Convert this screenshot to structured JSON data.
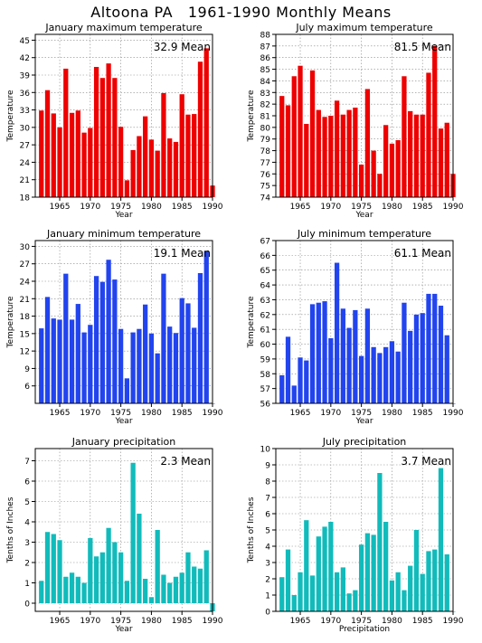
{
  "title": "Altoona PA   1961-1990 Monthly Means",
  "colors": {
    "red": "#ee0000",
    "blue": "#2244ee",
    "cyan": "#11bbbb"
  },
  "chart_data": [
    {
      "type": "bar",
      "title": "January maximum temperature",
      "ylabel": "Temperature",
      "xlabel": "Year",
      "mean_label": "32.9 Mean",
      "color": "#ee0000",
      "x": [
        1962,
        1963,
        1964,
        1965,
        1966,
        1967,
        1968,
        1969,
        1970,
        1971,
        1972,
        1973,
        1974,
        1975,
        1976,
        1977,
        1978,
        1979,
        1980,
        1981,
        1982,
        1983,
        1984,
        1985,
        1986,
        1987,
        1988,
        1989,
        1990
      ],
      "values": [
        32.9,
        36.4,
        32.4,
        30.0,
        40.1,
        32.5,
        32.9,
        29.1,
        29.9,
        40.4,
        38.5,
        41.0,
        38.5,
        30.1,
        20.9,
        26.1,
        28.5,
        31.9,
        27.9,
        26.0,
        35.9,
        28.1,
        27.5,
        35.7,
        32.2,
        32.3,
        41.3,
        43.6,
        20.0
      ],
      "ylim": [
        18,
        46
      ],
      "yticks": [
        18,
        21,
        24,
        27,
        30,
        33,
        36,
        39,
        42,
        45
      ],
      "xlim": [
        1961,
        1990
      ],
      "xticks": [
        1965,
        1970,
        1975,
        1980,
        1985,
        1990
      ]
    },
    {
      "type": "bar",
      "title": "July maximum temperature",
      "ylabel": "Temperature",
      "xlabel": "Year",
      "mean_label": "81.5 Mean",
      "color": "#ee0000",
      "x": [
        1962,
        1963,
        1964,
        1965,
        1966,
        1967,
        1968,
        1969,
        1970,
        1971,
        1972,
        1973,
        1974,
        1975,
        1976,
        1977,
        1978,
        1979,
        1980,
        1981,
        1982,
        1983,
        1984,
        1985,
        1986,
        1987,
        1988,
        1989,
        1990
      ],
      "values": [
        82.7,
        81.9,
        84.4,
        85.3,
        80.3,
        84.9,
        81.5,
        80.9,
        81.0,
        82.3,
        81.1,
        81.5,
        81.7,
        76.8,
        83.3,
        78.0,
        76.0,
        80.2,
        78.6,
        78.9,
        84.4,
        81.4,
        81.1,
        81.1,
        84.7,
        87.0,
        79.9,
        80.4,
        76.0
      ],
      "ylim": [
        74,
        88
      ],
      "yticks": [
        74,
        75,
        76,
        77,
        78,
        79,
        80,
        81,
        82,
        83,
        84,
        85,
        86,
        87,
        88
      ],
      "xlim": [
        1961,
        1990
      ],
      "xticks": [
        1965,
        1970,
        1975,
        1980,
        1985,
        1990
      ]
    },
    {
      "type": "bar",
      "title": "January minimum temperature",
      "ylabel": "Temperature",
      "xlabel": "Year",
      "mean_label": "19.1 Mean",
      "color": "#2244ee",
      "x": [
        1962,
        1963,
        1964,
        1965,
        1966,
        1967,
        1968,
        1969,
        1970,
        1971,
        1972,
        1973,
        1974,
        1975,
        1976,
        1977,
        1978,
        1979,
        1980,
        1981,
        1982,
        1983,
        1984,
        1985,
        1986,
        1987,
        1988,
        1989,
        1990
      ],
      "values": [
        15.9,
        21.3,
        17.6,
        17.4,
        25.3,
        17.4,
        20.1,
        15.2,
        16.5,
        24.9,
        23.9,
        27.7,
        24.3,
        15.8,
        7.3,
        15.2,
        15.8,
        20.0,
        15.0,
        11.6,
        25.3,
        16.2,
        15.1,
        21.1,
        20.2,
        16.0,
        25.4,
        29.2,
        3.0
      ],
      "ylim": [
        3,
        31
      ],
      "yticks": [
        6,
        9,
        12,
        15,
        18,
        21,
        24,
        27,
        30
      ],
      "xlim": [
        1961,
        1990
      ],
      "xticks": [
        1965,
        1970,
        1975,
        1980,
        1985,
        1990
      ]
    },
    {
      "type": "bar",
      "title": "July minimum temperature",
      "ylabel": "Temperature",
      "xlabel": "Year",
      "mean_label": "61.1 Mean",
      "color": "#2244ee",
      "x": [
        1962,
        1963,
        1964,
        1965,
        1966,
        1967,
        1968,
        1969,
        1970,
        1971,
        1972,
        1973,
        1974,
        1975,
        1976,
        1977,
        1978,
        1979,
        1980,
        1981,
        1982,
        1983,
        1984,
        1985,
        1986,
        1987,
        1988,
        1989,
        1990
      ],
      "values": [
        57.9,
        60.5,
        57.2,
        59.1,
        58.9,
        62.7,
        62.8,
        62.9,
        60.4,
        65.5,
        62.4,
        61.1,
        62.3,
        59.2,
        62.4,
        59.8,
        59.4,
        59.8,
        60.2,
        59.5,
        62.8,
        60.9,
        62.0,
        62.1,
        63.4,
        63.4,
        62.6,
        60.6,
        56.0
      ],
      "ylim": [
        56,
        67
      ],
      "yticks": [
        56,
        57,
        58,
        59,
        60,
        61,
        62,
        63,
        64,
        65,
        66,
        67
      ],
      "xlim": [
        1961,
        1990
      ],
      "xticks": [
        1965,
        1970,
        1975,
        1980,
        1985,
        1990
      ]
    },
    {
      "type": "bar",
      "title": "January precipitation",
      "ylabel": "Tenths of Inches",
      "xlabel": "Year",
      "mean_label": "2.3 Mean",
      "color": "#11bbbb",
      "x": [
        1962,
        1963,
        1964,
        1965,
        1966,
        1967,
        1968,
        1969,
        1970,
        1971,
        1972,
        1973,
        1974,
        1975,
        1976,
        1977,
        1978,
        1979,
        1980,
        1981,
        1982,
        1983,
        1984,
        1985,
        1986,
        1987,
        1988,
        1989,
        1990
      ],
      "values": [
        1.1,
        3.5,
        3.4,
        3.1,
        1.3,
        1.5,
        1.3,
        1.0,
        3.2,
        2.3,
        2.5,
        3.7,
        3.0,
        2.5,
        1.1,
        6.9,
        4.4,
        1.2,
        0.3,
        3.6,
        1.4,
        1.0,
        1.3,
        1.5,
        2.5,
        1.8,
        1.7,
        2.6,
        -0.4
      ],
      "ylim": [
        -0.4,
        7.6
      ],
      "yticks": [
        0,
        1,
        2,
        3,
        4,
        5,
        6,
        7
      ],
      "xlim": [
        1961,
        1990
      ],
      "xticks": [
        1965,
        1970,
        1975,
        1980,
        1985,
        1990
      ]
    },
    {
      "type": "bar",
      "title": "July precipitation",
      "ylabel": "Tenths of Inches",
      "xlabel": "Precipitation",
      "mean_label": "3.7 Mean",
      "color": "#11bbbb",
      "x": [
        1962,
        1963,
        1964,
        1965,
        1966,
        1967,
        1968,
        1969,
        1970,
        1971,
        1972,
        1973,
        1974,
        1975,
        1976,
        1977,
        1978,
        1979,
        1980,
        1981,
        1982,
        1983,
        1984,
        1985,
        1986,
        1987,
        1988,
        1989,
        1990
      ],
      "values": [
        2.1,
        3.8,
        1.0,
        2.4,
        5.6,
        2.2,
        4.6,
        5.2,
        5.5,
        2.4,
        2.7,
        1.1,
        1.3,
        4.1,
        4.8,
        4.7,
        8.5,
        5.5,
        1.9,
        2.4,
        1.3,
        2.8,
        5.0,
        2.3,
        3.7,
        3.8,
        8.8,
        3.5,
        0.0
      ],
      "ylim": [
        0,
        10
      ],
      "yticks": [
        0,
        1,
        2,
        3,
        4,
        5,
        6,
        7,
        8,
        9,
        10
      ],
      "xlim": [
        1961,
        1990
      ],
      "xticks": [
        1965,
        1970,
        1975,
        1980,
        1985,
        1990
      ]
    }
  ]
}
